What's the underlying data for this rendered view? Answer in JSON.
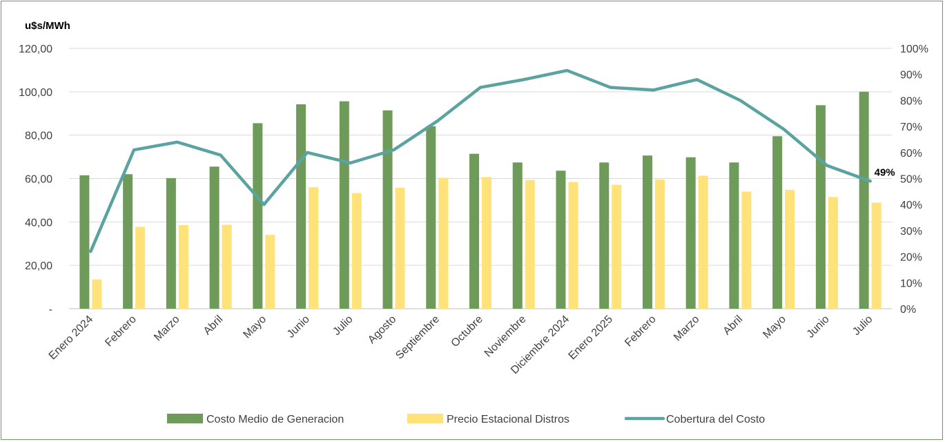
{
  "chart_data": {
    "type": "bar",
    "unit_label": "u$s/MWh",
    "categories": [
      "Enero 2024",
      "Febrero",
      "Marzo",
      "Abril",
      "Mayo",
      "Junio",
      "Julio",
      "Agosto",
      "Septiembre",
      "Octubre",
      "Noviembre",
      "Diciembre 2024",
      "Enero 2025",
      "Febrero",
      "Marzo",
      "Abril",
      "Mayo",
      "Junio",
      "Julio"
    ],
    "series": [
      {
        "name": "Costo Medio de Generacion",
        "kind": "bar",
        "axis": "left",
        "color": "#6e9a5a",
        "values": [
          61.5,
          62.0,
          60.2,
          65.5,
          85.5,
          94.2,
          95.6,
          91.4,
          84.1,
          71.4,
          67.4,
          63.6,
          67.4,
          70.6,
          69.8,
          67.4,
          79.5,
          93.8,
          100.0
        ]
      },
      {
        "name": "Precio Estacional Distros",
        "kind": "bar",
        "axis": "left",
        "color": "#ffe27a",
        "values": [
          13.5,
          37.7,
          38.5,
          38.7,
          34.0,
          56.0,
          53.3,
          55.8,
          60.3,
          60.7,
          59.3,
          58.4,
          57.1,
          59.5,
          61.3,
          54.0,
          54.8,
          51.5,
          48.9
        ]
      },
      {
        "name": "Cobertura del Costo",
        "kind": "line",
        "axis": "right",
        "color": "#5ba3a1",
        "values": [
          0.22,
          0.61,
          0.64,
          0.59,
          0.4,
          0.6,
          0.56,
          0.61,
          0.72,
          0.85,
          0.88,
          0.915,
          0.85,
          0.84,
          0.88,
          0.8,
          0.69,
          0.55,
          0.49
        ]
      }
    ],
    "left_axis": {
      "min": 0,
      "max": 120,
      "step": 20,
      "tick_labels": [
        "-",
        "20,00",
        "40,00",
        "60,00",
        "80,00",
        "100,00",
        "120,00"
      ]
    },
    "right_axis": {
      "min": 0,
      "max": 1.0,
      "step": 0.1,
      "tick_labels": [
        "0%",
        "10%",
        "20%",
        "30%",
        "40%",
        "50%",
        "60%",
        "70%",
        "80%",
        "90%",
        "100%"
      ]
    },
    "end_label": "49%",
    "grid": true,
    "legend_position": "bottom"
  }
}
